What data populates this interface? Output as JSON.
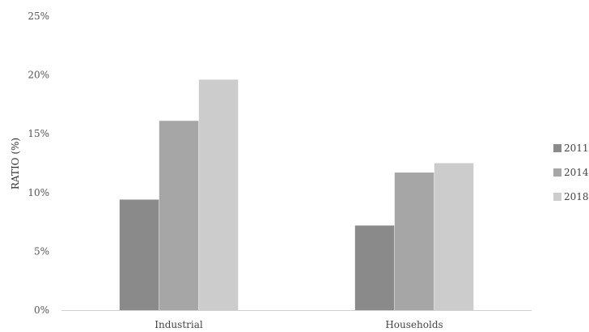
{
  "chart_data": {
    "type": "bar",
    "categories": [
      "Industrial",
      "Households"
    ],
    "series": [
      {
        "name": "2011",
        "values": [
          9.4,
          7.2
        ],
        "color": "#8a8a8a"
      },
      {
        "name": "2014",
        "values": [
          16.1,
          11.7
        ],
        "color": "#a6a6a6"
      },
      {
        "name": "2018",
        "values": [
          19.6,
          12.5
        ],
        "color": "#cccccc"
      }
    ],
    "ylabel": "RATIO (%)",
    "ylim": [
      0,
      25
    ],
    "yticks": [
      0,
      5,
      10,
      15,
      20,
      25
    ],
    "ytick_labels": [
      "0%",
      "5%",
      "10%",
      "15%",
      "20%",
      "25%"
    ],
    "grid": false,
    "legend_position": "right"
  }
}
